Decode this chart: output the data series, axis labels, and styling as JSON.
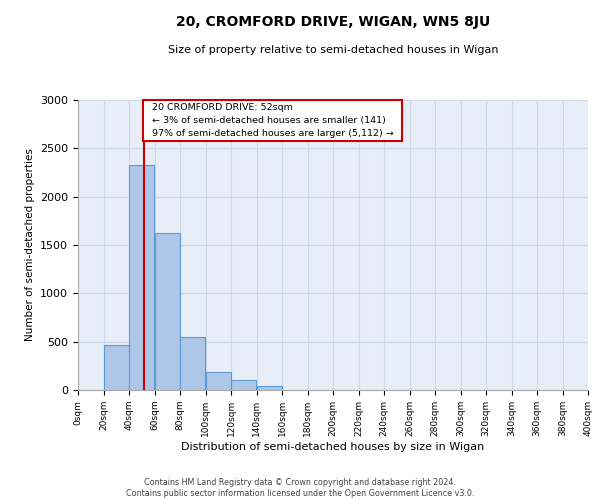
{
  "title": "20, CROMFORD DRIVE, WIGAN, WN5 8JU",
  "subtitle": "Size of property relative to semi-detached houses in Wigan",
  "xlabel": "Distribution of semi-detached houses by size in Wigan",
  "ylabel": "Number of semi-detached properties",
  "annotation_title": "20 CROMFORD DRIVE: 52sqm",
  "annotation_line1": "← 3% of semi-detached houses are smaller (141)",
  "annotation_line2": "97% of semi-detached houses are larger (5,112) →",
  "property_size": 52,
  "bin_edges": [
    0,
    20,
    40,
    60,
    80,
    100,
    120,
    140,
    160,
    180,
    200,
    220,
    240,
    260,
    280,
    300,
    320,
    340,
    360,
    380,
    400
  ],
  "bin_counts": [
    5,
    470,
    2330,
    1620,
    545,
    185,
    105,
    45,
    0,
    0,
    0,
    0,
    0,
    0,
    0,
    0,
    0,
    0,
    0,
    0
  ],
  "bar_color": "#aec6e8",
  "bar_edge_color": "#5b9bd5",
  "marker_line_color": "#cc0000",
  "annotation_box_color": "#cc0000",
  "grid_color": "#d0d8e8",
  "background_color": "#e8eef8",
  "ylim": [
    0,
    3000
  ],
  "yticks": [
    0,
    500,
    1000,
    1500,
    2000,
    2500,
    3000
  ],
  "footer_line1": "Contains HM Land Registry data © Crown copyright and database right 2024.",
  "footer_line2": "Contains public sector information licensed under the Open Government Licence v3.0."
}
